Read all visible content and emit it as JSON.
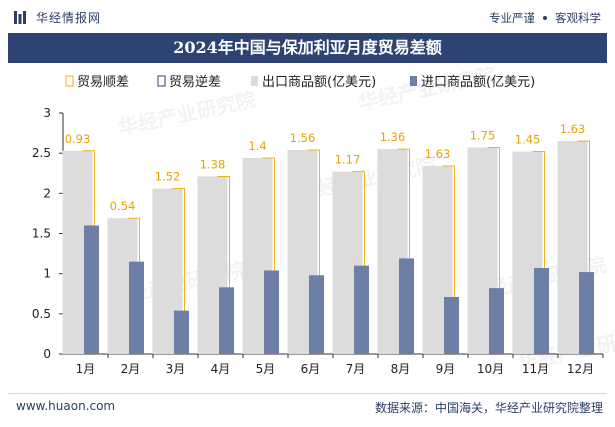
{
  "header": {
    "brand": "华经情报网",
    "slogan_left": "专业严谨",
    "slogan_right": "客观科学"
  },
  "watermark": "华经产业研究院",
  "footer": {
    "website": "www.huaon.com",
    "source": "数据来源：中国海关，华经产业研究院整理"
  },
  "colors": {
    "surplus": "#f2b01e",
    "deficit": "#2e4371",
    "export": "#dcdcdc",
    "import": "#6d7fa6",
    "title_bg": "#2e4371"
  },
  "chart_data": {
    "type": "bar",
    "title": "2024年中国与保加利亚月度贸易差额",
    "categories": [
      "1月",
      "2月",
      "3月",
      "4月",
      "5月",
      "6月",
      "7月",
      "8月",
      "9月",
      "10月",
      "11月",
      "12月"
    ],
    "series": [
      {
        "name": "出口商品额(亿美元)",
        "values": [
          2.53,
          1.69,
          2.06,
          2.21,
          2.44,
          2.54,
          2.27,
          2.55,
          2.34,
          2.57,
          2.52,
          2.65
        ]
      },
      {
        "name": "进口商品额(亿美元)",
        "values": [
          1.6,
          1.15,
          0.54,
          0.83,
          1.04,
          0.98,
          1.1,
          1.19,
          0.71,
          0.82,
          1.07,
          1.02
        ]
      }
    ],
    "balance": {
      "surplus_name": "贸易顺差",
      "deficit_name": "贸易逆差",
      "values": [
        0.93,
        0.54,
        1.52,
        1.38,
        1.4,
        1.56,
        1.17,
        1.36,
        1.63,
        1.75,
        1.45,
        1.63
      ],
      "labels": [
        "0.93",
        "0.54",
        "1.52",
        "1.38",
        "1.4",
        "1.56",
        "1.17",
        "1.36",
        "1.63",
        "1.75",
        "1.45",
        "1.63"
      ]
    },
    "ylim": [
      0,
      3
    ],
    "yticks": [
      0,
      0.5,
      1,
      1.5,
      2,
      2.5,
      3
    ],
    "ytick_labels": [
      "0",
      "0.5",
      "1",
      "1.5",
      "2",
      "2.5",
      "3"
    ],
    "legend_position": "top",
    "grid": false
  }
}
